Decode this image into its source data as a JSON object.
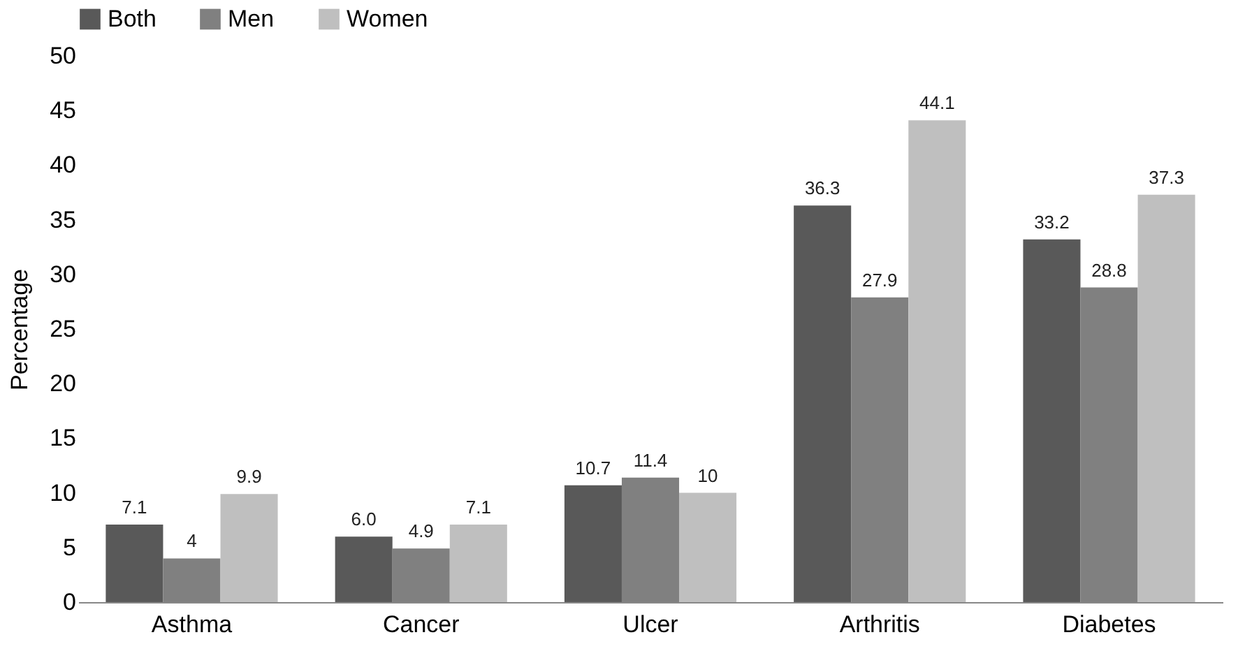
{
  "chart_data": {
    "type": "bar",
    "ylabel": "Percentage",
    "categories": [
      "Asthma",
      "Cancer",
      "Ulcer",
      "Arthritis",
      "Diabetes"
    ],
    "series": [
      {
        "name": "Both",
        "color": "#595959",
        "values": [
          7.1,
          6.0,
          10.7,
          36.3,
          33.2
        ],
        "value_labels": [
          "7.1",
          "6.0",
          "10.7",
          "36.3",
          "33.2"
        ]
      },
      {
        "name": "Men",
        "color": "#808080",
        "values": [
          4,
          4.9,
          11.4,
          27.9,
          28.8
        ],
        "value_labels": [
          "4",
          "4.9",
          "11.4",
          "27.9",
          "28.8"
        ]
      },
      {
        "name": "Women",
        "color": "#bfbfbf",
        "values": [
          9.9,
          7.1,
          10,
          44.1,
          37.3
        ],
        "value_labels": [
          "9.9",
          "7.1",
          "10",
          "44.1",
          "37.3"
        ]
      }
    ],
    "ylim": [
      0,
      50
    ],
    "yticks": [
      0,
      5,
      10,
      15,
      20,
      25,
      30,
      35,
      40,
      45,
      50
    ],
    "grid": false,
    "legend": "top"
  }
}
